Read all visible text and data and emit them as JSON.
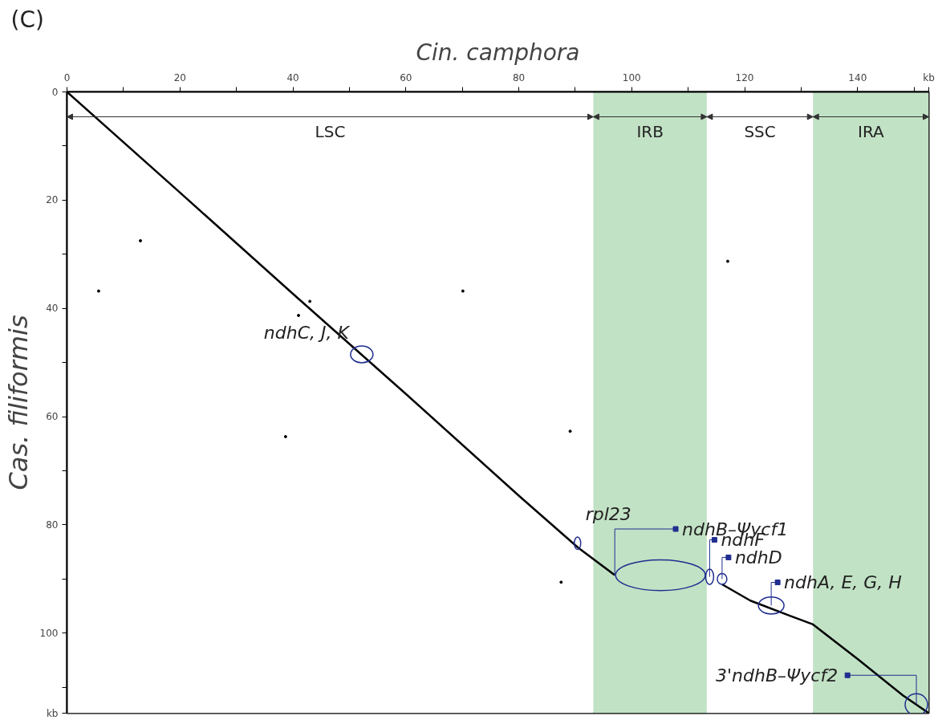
{
  "chart_data": {
    "type": "line",
    "xlabel": "Cin. camphora",
    "ylabel": "Cas. filiformis",
    "xlim": [
      0,
      152.6
    ],
    "ylim": [
      114.8,
      0
    ],
    "xticks": [
      0,
      {
        "value": 10,
        "label": null
      },
      20,
      {
        "value": 30,
        "label": null
      },
      40,
      {
        "value": 50,
        "label": null
      },
      60,
      {
        "value": 70,
        "label": null
      },
      80,
      {
        "value": 90,
        "label": null
      },
      100,
      {
        "value": 110,
        "label": null
      },
      120,
      {
        "value": 130,
        "label": null
      },
      140,
      {
        "value": 150,
        "label": null
      },
      {
        "value": 152.6,
        "label": "kb"
      }
    ],
    "yticks": [
      0,
      {
        "value": 10,
        "label": null
      },
      20,
      {
        "value": 30,
        "label": null
      },
      40,
      {
        "value": 50,
        "label": null
      },
      60,
      {
        "value": 70,
        "label": null
      },
      80,
      {
        "value": 90,
        "label": null
      },
      100,
      {
        "value": 110,
        "label": null
      },
      {
        "value": 114.8,
        "label": "kb"
      }
    ],
    "grid": false,
    "series": [
      {
        "color": "#000000",
        "x": [
          0,
          20,
          40,
          60,
          80,
          90.5,
          97,
          105,
          116,
          121,
          128,
          132.1,
          140,
          148,
          152.6
        ],
        "values": [
          0,
          18.6,
          37.3,
          55.8,
          74.6,
          84.2,
          89.3,
          null,
          91,
          94,
          96.8,
          98.4,
          104.8,
          111.5,
          114.8
        ]
      },
      {
        "type": "scatter",
        "color": "#000000",
        "marker": "circle",
        "x": [
          13,
          5.6,
          41,
          43,
          70.1,
          117,
          38.7,
          89.1,
          87.5
        ],
        "values": [
          27.5,
          36.8,
          41.3,
          38.7,
          36.8,
          31.3,
          63.7,
          62.7,
          90.6
        ]
      }
    ],
    "bands": [
      {
        "axis": "x",
        "from": 0,
        "to": 93.2,
        "label": "LSC",
        "color": "#ffffff"
      },
      {
        "axis": "x",
        "from": 93.2,
        "to": 113.3,
        "label": "IRB",
        "color": "#c2e2c5"
      },
      {
        "axis": "x",
        "from": 113.3,
        "to": 132.1,
        "label": "SSC",
        "color": "#ffffff"
      },
      {
        "axis": "x",
        "from": 132.1,
        "to": 152.6,
        "label": "IRA",
        "color": "#c2e2c5"
      }
    ],
    "annotations": [
      "(C)",
      {
        "text": "ndhC, J, K",
        "x": 52.2,
        "y": 48.5
      },
      {
        "text": "rpl23",
        "x": 90.4,
        "y": 83.4
      },
      {
        "text": "ndhB–Ψycf1",
        "x": 97,
        "y": 89.3
      },
      {
        "text": "ndhF",
        "x": 113.8,
        "y": 89.6
      },
      {
        "text": "ndhD",
        "x": 116.0,
        "y": 90.0
      },
      {
        "text": "ndhA, E, G, H",
        "x": 124.7,
        "y": 94.9
      },
      {
        "text": "3'ndhB–Ψycf2",
        "x": 150.4,
        "y": 113.2
      }
    ]
  }
}
